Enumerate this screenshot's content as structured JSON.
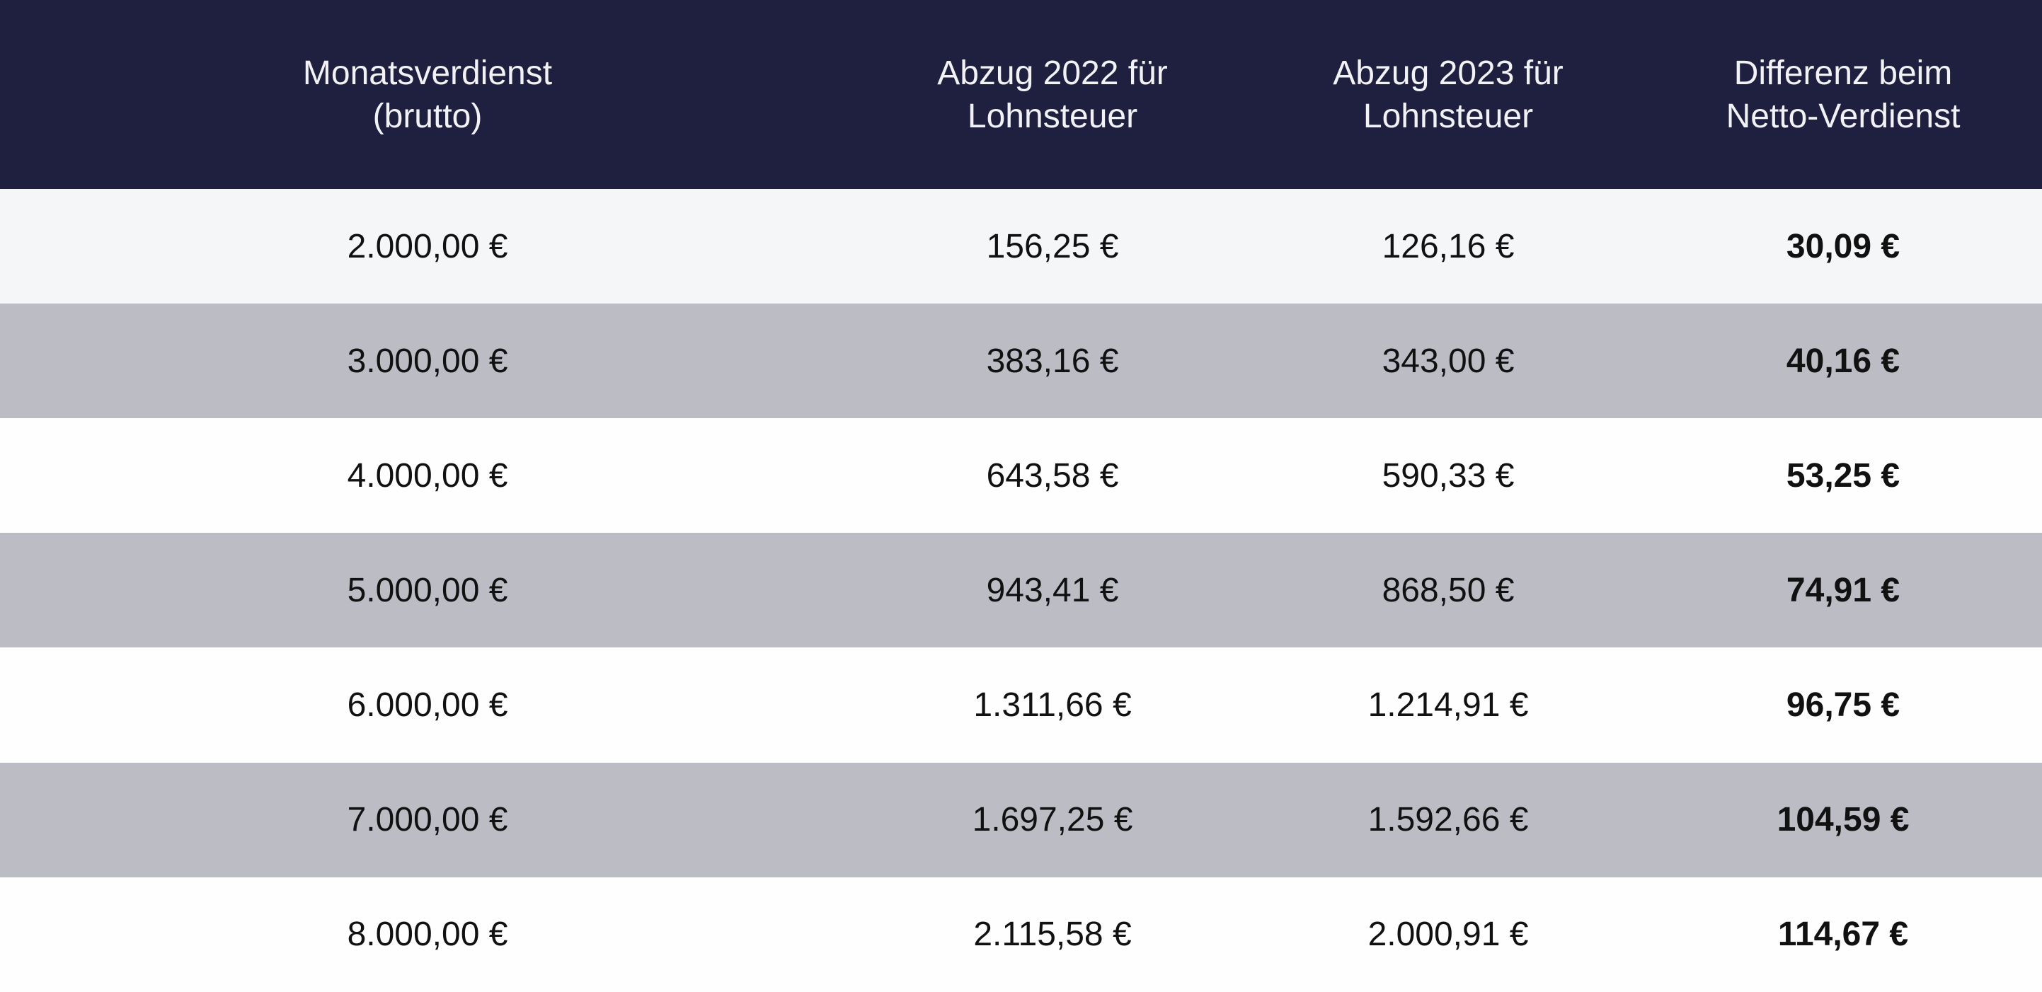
{
  "table": {
    "header": [
      [
        "Monatsverdienst",
        "(brutto)"
      ],
      [
        "Abzug 2022 für",
        "Lohnsteuer"
      ],
      [
        "Abzug 2023 für",
        "Lohnsteuer"
      ],
      [
        "Differenz beim",
        "Netto-Verdienst"
      ]
    ],
    "rows": [
      [
        "2.000,00 €",
        "156,25 €",
        "126,16 €",
        "30,09 €"
      ],
      [
        "3.000,00 €",
        "383,16 €",
        "343,00 €",
        "40,16 €"
      ],
      [
        "4.000,00 €",
        "643,58 €",
        "590,33 €",
        "53,25 €"
      ],
      [
        "5.000,00 €",
        "943,41 €",
        "868,50 €",
        "74,91 €"
      ],
      [
        "6.000,00 €",
        "1.311,66 €",
        "1.214,91 €",
        "96,75 €"
      ],
      [
        "7.000,00 €",
        "1.697,25 €",
        "1.592,66 €",
        "104,59 €"
      ],
      [
        "8.000,00 €",
        "2.115,58 €",
        "2.000,91 €",
        "114,67 €"
      ]
    ]
  }
}
